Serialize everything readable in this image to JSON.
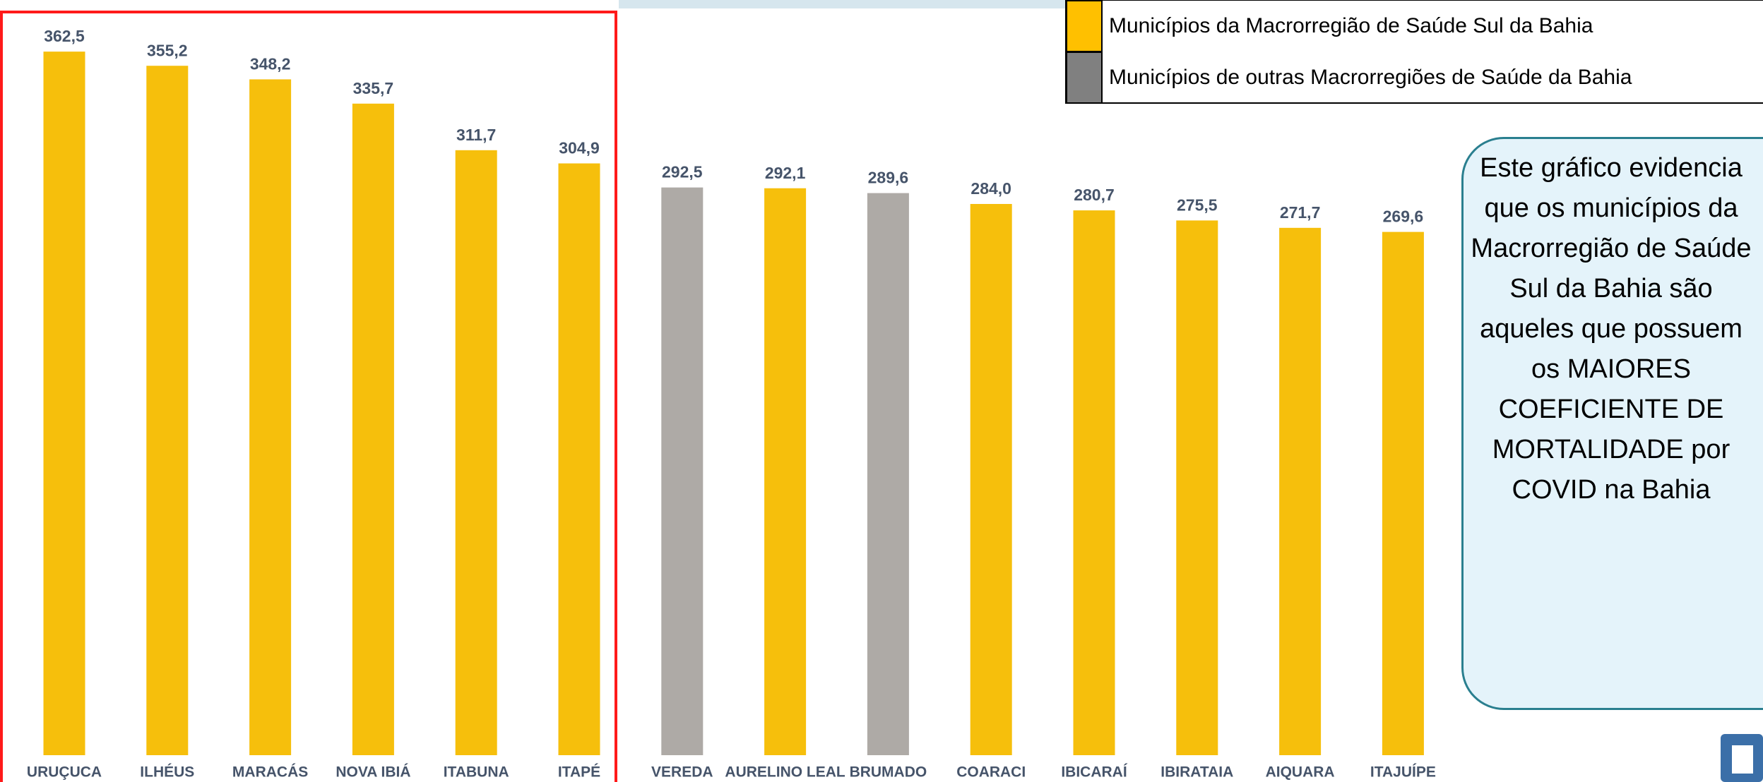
{
  "chart_data": {
    "type": "bar",
    "categories": [
      "URUÇUCA",
      "ILHÉUS",
      "MARACÁS",
      "NOVA IBIÁ",
      "ITABUNA",
      "ITAPÉ",
      "VEREDA",
      "AURELINO LEAL",
      "BRUMADO",
      "COARACI",
      "IBICARAÍ",
      "IBIRATAIA",
      "AIQUARA",
      "ITAJUÍPE"
    ],
    "values": [
      362.5,
      355.2,
      348.2,
      335.7,
      311.7,
      304.9,
      292.5,
      292.1,
      289.6,
      284.0,
      280.7,
      275.5,
      271.7,
      269.6
    ],
    "value_labels": [
      "362,5",
      "355,2",
      "348,2",
      "335,7",
      "311,7",
      "304,9",
      "292,5",
      "292,1",
      "289,6",
      "284,0",
      "280,7",
      "275,5",
      "271,7",
      "269,6"
    ],
    "colors": [
      "#f6bf0c",
      "#f6bf0c",
      "#f6bf0c",
      "#f6bf0c",
      "#f6bf0c",
      "#f6bf0c",
      "#aeaaa6",
      "#f6bf0c",
      "#aeaaa6",
      "#f6bf0c",
      "#f6bf0c",
      "#f6bf0c",
      "#f6bf0c",
      "#f6bf0c"
    ],
    "ylim": [
      0,
      380
    ],
    "legend": [
      {
        "name": "Municípios da Macrorregião de Saúde Sul da Bahia",
        "color": "#ffc000"
      },
      {
        "name": "Municípios de outras Macrorregiões de Saúde da Bahia",
        "color": "#808080"
      }
    ],
    "annotation": "Este gráfico evidencia que os municípios da Macrorregião de Saúde Sul da Bahia são aqueles que possuem os MAIORES COEFICIENTE DE MORTALIDADE por COVID na Bahia"
  }
}
